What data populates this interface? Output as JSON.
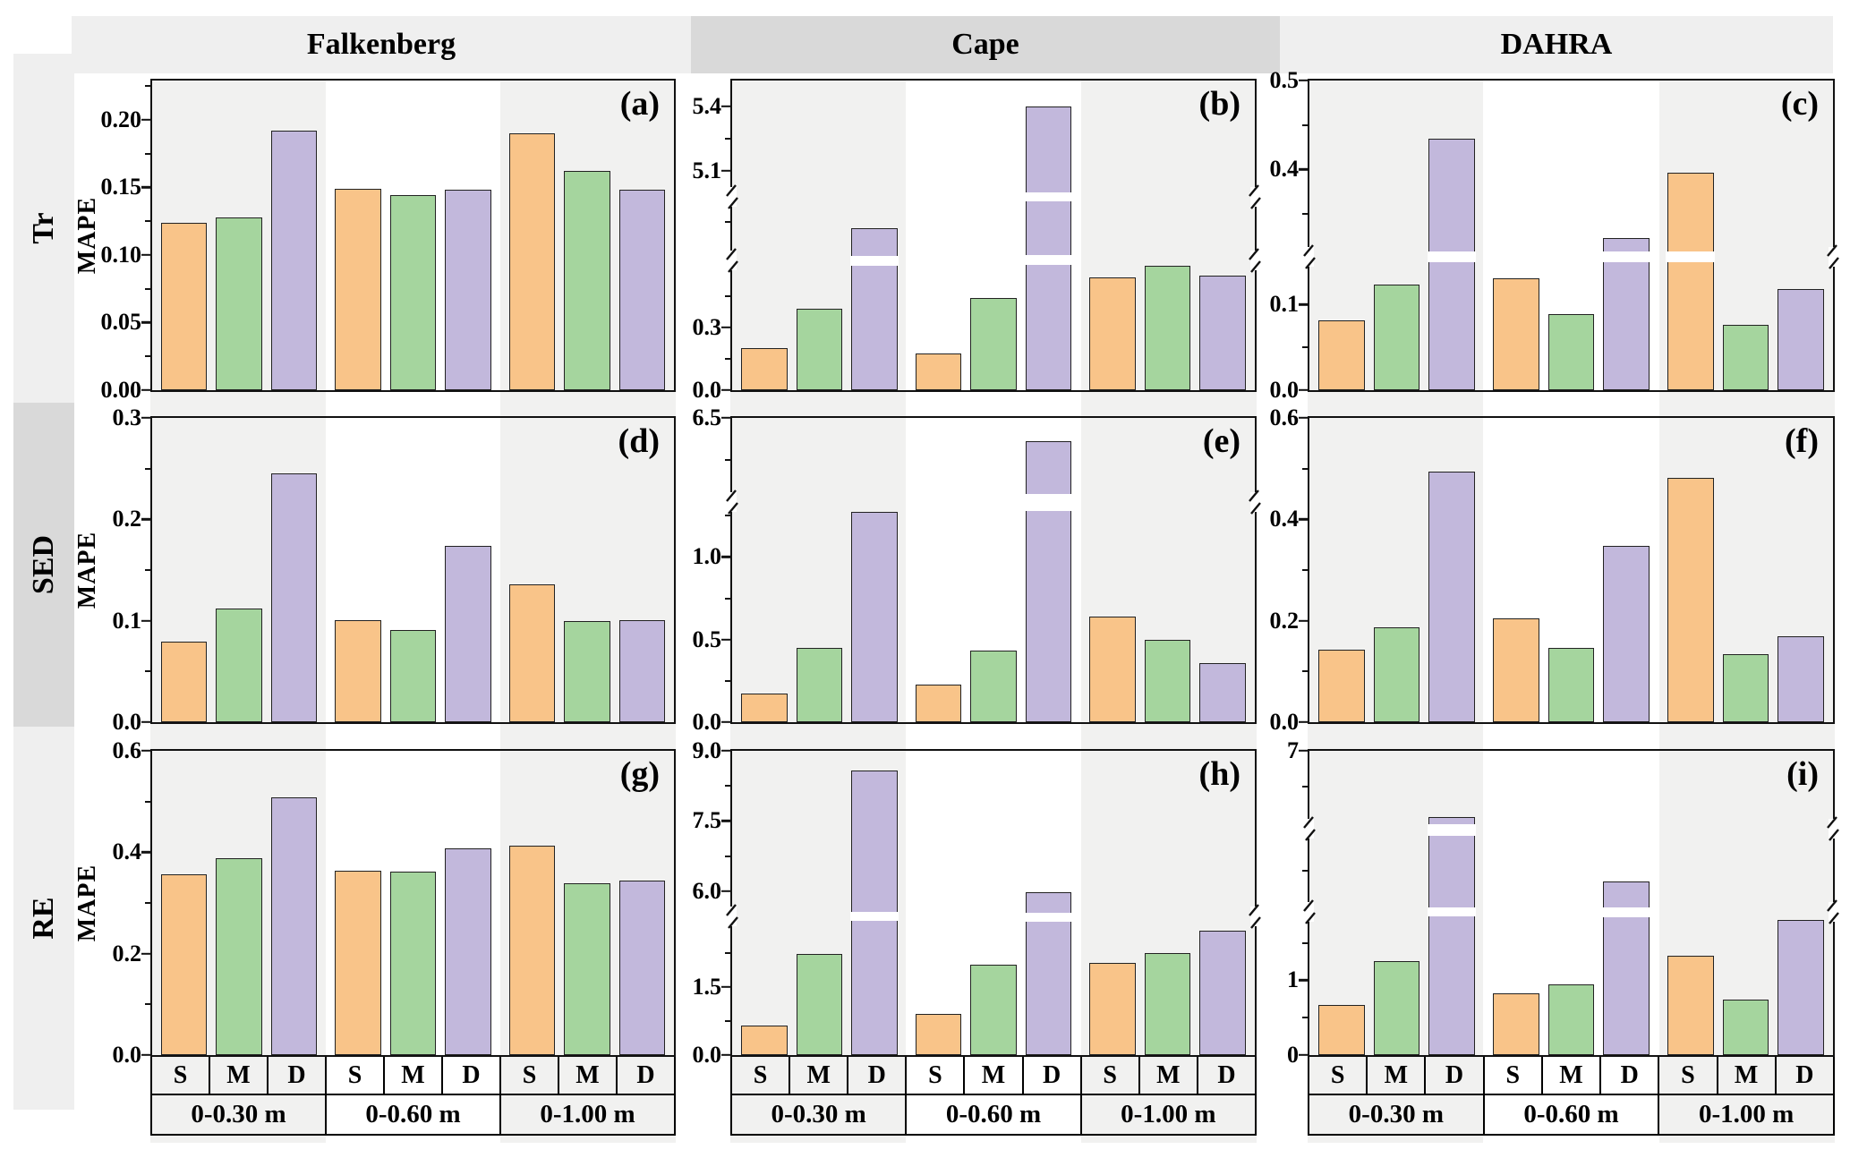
{
  "figure": {
    "y_axis_label": "MAPE",
    "bar_categories": [
      "S",
      "M",
      "D"
    ],
    "depth_groups": [
      "0-0.30 m",
      "0-0.60 m",
      "0-1.00 m"
    ],
    "title_row": {
      "columns": [
        {
          "label": "Falkenberg",
          "bg": "#efefef"
        },
        {
          "label": "Cape",
          "bg": "#d9d9d9"
        },
        {
          "label": "DAHRA",
          "bg": "#efefef"
        }
      ]
    },
    "row_labels": [
      {
        "label": "Tr",
        "bg": "#efefef"
      },
      {
        "label": "SED",
        "bg": "#d9d9d9"
      },
      {
        "label": "RE",
        "bg": "#efefef"
      }
    ],
    "colors": {
      "S": "#f9c489",
      "M": "#a5d59e",
      "D": "#c2b8dc",
      "bar_outline": "#222222",
      "band_gray": "#f1f1f0",
      "band_white": "#ffffff",
      "panel_border": "#111111"
    }
  },
  "chart_data": [
    {
      "id": "a",
      "letter": "(a)",
      "site": "Falkenberg",
      "variable": "Tr",
      "type": "bar",
      "ylabel": "MAPE",
      "categories": [
        "0-0.30 m",
        "0-0.60 m",
        "0-1.00 m"
      ],
      "series": [
        {
          "name": "S",
          "values": [
            0.124,
            0.149,
            0.19
          ]
        },
        {
          "name": "M",
          "values": [
            0.128,
            0.144,
            0.162
          ]
        },
        {
          "name": "D",
          "values": [
            0.192,
            0.148,
            0.148
          ]
        }
      ],
      "axis": {
        "segments": [
          {
            "v0": 0,
            "v1": 0.229,
            "f0": 0,
            "f1": 1
          }
        ],
        "breaks": [],
        "ticks": [
          {
            "v": 0,
            "label": "0.00"
          },
          {
            "v": 0.05,
            "label": "0.05"
          },
          {
            "v": 0.1,
            "label": "0.10"
          },
          {
            "v": 0.15,
            "label": "0.15"
          },
          {
            "v": 0.2,
            "label": "0.20"
          }
        ],
        "minor": [
          0.025,
          0.075,
          0.125,
          0.175,
          0.225
        ]
      }
    },
    {
      "id": "b",
      "letter": "(b)",
      "site": "Cape",
      "variable": "Tr",
      "type": "bar",
      "ylabel": "MAPE",
      "categories": [
        "0-0.30 m",
        "0-0.60 m",
        "0-1.00 m"
      ],
      "series": [
        {
          "name": "S",
          "values": [
            0.2,
            0.175,
            0.54
          ]
        },
        {
          "name": "M",
          "values": [
            0.39,
            0.44,
            0.595
          ]
        },
        {
          "name": "D",
          "values": [
            0.8,
            5.4,
            0.55
          ]
        }
      ],
      "axis": {
        "segments": [
          {
            "v0": 0,
            "v1": 0.6,
            "f0": 0,
            "f1": 0.4046
          },
          {
            "v0": 0.6,
            "v1": 1.0,
            "f0": 0.435,
            "f1": 0.61
          },
          {
            "v0": 5.0,
            "v1": 5.52,
            "f0": 0.64,
            "f1": 1
          }
        ],
        "breaks": [
          {
            "f0": 0.4046,
            "f1": 0.435
          },
          {
            "f0": 0.61,
            "f1": 0.64
          }
        ],
        "ticks": [
          {
            "v": 0,
            "label": "0.0"
          },
          {
            "v": 0.3,
            "label": "0.3"
          },
          {
            "v": 5.1,
            "label": "5.1"
          },
          {
            "v": 5.4,
            "label": "5.4"
          }
        ],
        "minor": [
          0.15,
          0.45,
          0.85,
          5.25
        ]
      }
    },
    {
      "id": "c",
      "letter": "(c)",
      "site": "DAHRA",
      "variable": "Tr",
      "type": "bar",
      "ylabel": "MAPE",
      "categories": [
        "0-0.30 m",
        "0-0.60 m",
        "0-1.00 m"
      ],
      "series": [
        {
          "name": "S",
          "values": [
            0.082,
            0.131,
            0.396
          ]
        },
        {
          "name": "M",
          "values": [
            0.123,
            0.089,
            0.076
          ]
        },
        {
          "name": "D",
          "values": [
            0.435,
            0.323,
            0.118
          ]
        }
      ],
      "axis": {
        "segments": [
          {
            "v0": 0,
            "v1": 0.15,
            "f0": 0,
            "f1": 0.4145
          },
          {
            "v0": 0.308,
            "v1": 0.5,
            "f0": 0.4493,
            "f1": 1
          }
        ],
        "breaks": [
          {
            "f0": 0.4145,
            "f1": 0.4493
          }
        ],
        "ticks": [
          {
            "v": 0,
            "label": "0.0"
          },
          {
            "v": 0.1,
            "label": "0.1"
          },
          {
            "v": 0.4,
            "label": "0.4"
          },
          {
            "v": 0.5,
            "label": "0.5"
          }
        ],
        "minor": [
          0.05,
          0.35,
          0.45
        ]
      }
    },
    {
      "id": "d",
      "letter": "(d)",
      "site": "Falkenberg",
      "variable": "SED",
      "type": "bar",
      "ylabel": "MAPE",
      "categories": [
        "0-0.30 m",
        "0-0.60 m",
        "0-1.00 m"
      ],
      "series": [
        {
          "name": "S",
          "values": [
            0.079,
            0.101,
            0.136
          ]
        },
        {
          "name": "M",
          "values": [
            0.112,
            0.091,
            0.1
          ]
        },
        {
          "name": "D",
          "values": [
            0.245,
            0.174,
            0.101
          ]
        }
      ],
      "axis": {
        "segments": [
          {
            "v0": 0,
            "v1": 0.3,
            "f0": 0,
            "f1": 1
          }
        ],
        "breaks": [],
        "ticks": [
          {
            "v": 0,
            "label": "0.0"
          },
          {
            "v": 0.1,
            "label": "0.1"
          },
          {
            "v": 0.2,
            "label": "0.2"
          },
          {
            "v": 0.3,
            "label": "0.3"
          }
        ],
        "minor": [
          0.05,
          0.15,
          0.25
        ]
      }
    },
    {
      "id": "e",
      "letter": "(e)",
      "site": "Cape",
      "variable": "SED",
      "type": "bar",
      "ylabel": "MAPE",
      "categories": [
        "0-0.30 m",
        "0-0.60 m",
        "0-1.00 m"
      ],
      "series": [
        {
          "name": "S",
          "values": [
            0.176,
            0.23,
            0.64
          ]
        },
        {
          "name": "M",
          "values": [
            0.449,
            0.433,
            0.5
          ]
        },
        {
          "name": "D",
          "values": [
            1.272,
            6.36,
            0.36
          ]
        }
      ],
      "axis": {
        "segments": [
          {
            "v0": 0,
            "v1": 1.28,
            "f0": 0,
            "f1": 0.695
          },
          {
            "v0": 6.05,
            "v1": 6.5,
            "f0": 0.753,
            "f1": 1
          }
        ],
        "breaks": [
          {
            "f0": 0.695,
            "f1": 0.753
          }
        ],
        "ticks": [
          {
            "v": 0,
            "label": "0.0"
          },
          {
            "v": 0.5,
            "label": "0.5"
          },
          {
            "v": 1.0,
            "label": "1.0"
          },
          {
            "v": 6.5,
            "label": "6.5"
          }
        ],
        "minor": [
          0.25,
          0.75,
          1.25,
          6.25
        ]
      }
    },
    {
      "id": "f",
      "letter": "(f)",
      "site": "DAHRA",
      "variable": "SED",
      "type": "bar",
      "ylabel": "MAPE",
      "categories": [
        "0-0.30 m",
        "0-0.60 m",
        "0-1.00 m"
      ],
      "series": [
        {
          "name": "S",
          "values": [
            0.143,
            0.204,
            0.482
          ]
        },
        {
          "name": "M",
          "values": [
            0.187,
            0.147,
            0.134
          ]
        },
        {
          "name": "D",
          "values": [
            0.495,
            0.347,
            0.169
          ]
        }
      ],
      "axis": {
        "segments": [
          {
            "v0": 0,
            "v1": 0.6,
            "f0": 0,
            "f1": 1
          }
        ],
        "breaks": [],
        "ticks": [
          {
            "v": 0,
            "label": "0.0"
          },
          {
            "v": 0.2,
            "label": "0.2"
          },
          {
            "v": 0.4,
            "label": "0.4"
          },
          {
            "v": 0.6,
            "label": "0.6"
          }
        ],
        "minor": [
          0.1,
          0.3,
          0.5
        ]
      }
    },
    {
      "id": "g",
      "letter": "(g)",
      "site": "Falkenberg",
      "variable": "RE",
      "type": "bar",
      "ylabel": "MAPE",
      "categories": [
        "0-0.30 m",
        "0-0.60 m",
        "0-1.00 m"
      ],
      "series": [
        {
          "name": "S",
          "values": [
            0.357,
            0.363,
            0.413
          ]
        },
        {
          "name": "M",
          "values": [
            0.389,
            0.361,
            0.338
          ]
        },
        {
          "name": "D",
          "values": [
            0.509,
            0.408,
            0.345
          ]
        }
      ],
      "axis": {
        "segments": [
          {
            "v0": 0,
            "v1": 0.6,
            "f0": 0,
            "f1": 1
          }
        ],
        "breaks": [],
        "ticks": [
          {
            "v": 0,
            "label": "0.0"
          },
          {
            "v": 0.2,
            "label": "0.2"
          },
          {
            "v": 0.4,
            "label": "0.4"
          },
          {
            "v": 0.6,
            "label": "0.6"
          }
        ],
        "minor": [
          0.1,
          0.3,
          0.5
        ]
      }
    },
    {
      "id": "h",
      "letter": "(h)",
      "site": "Cape",
      "variable": "RE",
      "type": "bar",
      "ylabel": "MAPE",
      "categories": [
        "0-0.30 m",
        "0-0.60 m",
        "0-1.00 m"
      ],
      "series": [
        {
          "name": "S",
          "values": [
            0.66,
            0.91,
            2.03
          ]
        },
        {
          "name": "M",
          "values": [
            2.24,
            1.99,
            2.26
          ]
        },
        {
          "name": "D",
          "values": [
            8.57,
            5.97,
            2.75
          ]
        }
      ],
      "axis": {
        "segments": [
          {
            "v0": 0,
            "v1": 2.96,
            "f0": 0,
            "f1": 0.4406
          },
          {
            "v0": 5.55,
            "v1": 9.0,
            "f0": 0.4696,
            "f1": 1
          }
        ],
        "breaks": [
          {
            "f0": 0.4406,
            "f1": 0.4696
          }
        ],
        "ticks": [
          {
            "v": 0,
            "label": "0.0"
          },
          {
            "v": 1.5,
            "label": "1.5"
          },
          {
            "v": 6.0,
            "label": "6.0"
          },
          {
            "v": 7.5,
            "label": "7.5"
          },
          {
            "v": 9.0,
            "label": "9.0"
          }
        ],
        "minor": [
          0.75,
          2.25,
          6.75,
          8.25
        ]
      }
    },
    {
      "id": "i",
      "letter": "(i)",
      "site": "DAHRA",
      "variable": "RE",
      "type": "bar",
      "ylabel": "MAPE",
      "categories": [
        "0-0.30 m",
        "0-0.60 m",
        "0-1.00 m"
      ],
      "series": [
        {
          "name": "S",
          "values": [
            0.67,
            0.82,
            1.33
          ]
        },
        {
          "name": "M",
          "values": [
            1.25,
            0.95,
            0.74
          ]
        },
        {
          "name": "D",
          "values": [
            6.08,
            2.71,
            1.8
          ]
        }
      ],
      "axis": {
        "segments": [
          {
            "v0": 0,
            "v1": 1.85,
            "f0": 0,
            "f1": 0.455
          },
          {
            "v0": 2,
            "v1": 4,
            "f0": 0.487,
            "f1": 0.7246
          },
          {
            "v0": 6,
            "v1": 7,
            "f0": 0.7623,
            "f1": 1
          }
        ],
        "breaks": [
          {
            "f0": 0.455,
            "f1": 0.487
          },
          {
            "f0": 0.7246,
            "f1": 0.7623
          }
        ],
        "ticks": [
          {
            "v": 0,
            "label": "0"
          },
          {
            "v": 1,
            "label": "1"
          },
          {
            "v": 7,
            "label": "7"
          }
        ],
        "minor": [
          0.5,
          1.5,
          3,
          6.5
        ]
      }
    }
  ]
}
